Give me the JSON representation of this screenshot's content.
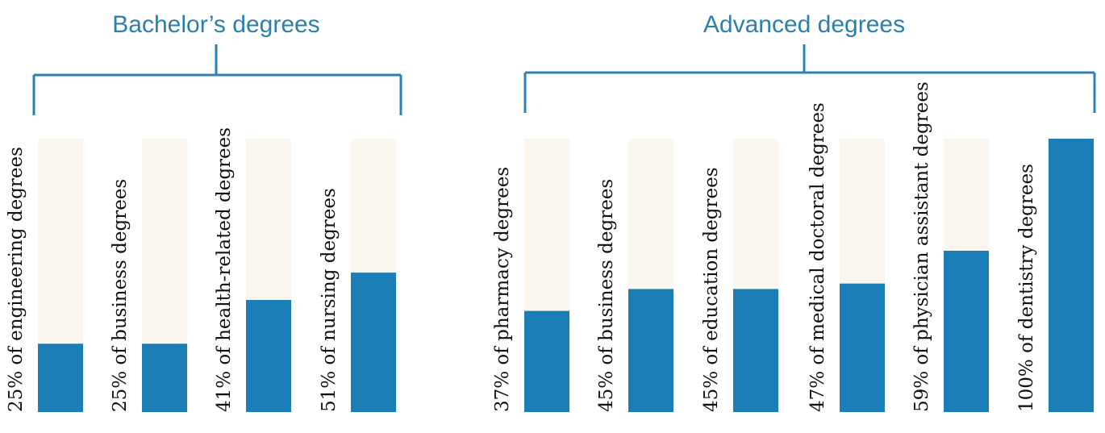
{
  "colors": {
    "bar_fill": "#1a7db6",
    "bar_track": "#fbf7ee",
    "bracket": "#2e82b1",
    "title": "#2b7fad"
  },
  "groups": [
    {
      "title": "Bachelor’s degrees",
      "bars": [
        {
          "label": "25% of engineering degrees",
          "value": 25
        },
        {
          "label": "25% of business degrees",
          "value": 25
        },
        {
          "label": "41% of health-related degrees",
          "value": 41
        },
        {
          "label": "51% of nursing degrees",
          "value": 51
        }
      ]
    },
    {
      "title": "Advanced degrees",
      "bars": [
        {
          "label": "37% of pharmacy degrees",
          "value": 37
        },
        {
          "label": "45% of business degrees",
          "value": 45
        },
        {
          "label": "45% of education degrees",
          "value": 45
        },
        {
          "label": "47% of medical doctoral degrees",
          "value": 47
        },
        {
          "label": "59% of physician assistant degrees",
          "value": 59
        },
        {
          "label": "100% of dentistry degrees",
          "value": 100
        }
      ]
    }
  ],
  "chart_data": {
    "type": "bar",
    "title": "",
    "xlabel": "",
    "ylabel": "",
    "ylim": [
      0,
      100
    ],
    "grid": false,
    "legend": "none",
    "groups": [
      {
        "name": "Bachelor’s degrees",
        "categories": [
          "engineering",
          "business",
          "health-related",
          "nursing"
        ],
        "values": [
          25,
          25,
          41,
          51
        ]
      },
      {
        "name": "Advanced degrees",
        "categories": [
          "pharmacy",
          "business",
          "education",
          "medical doctoral",
          "physician assistant",
          "dentistry"
        ],
        "values": [
          37,
          45,
          45,
          47,
          59,
          100
        ]
      }
    ]
  }
}
